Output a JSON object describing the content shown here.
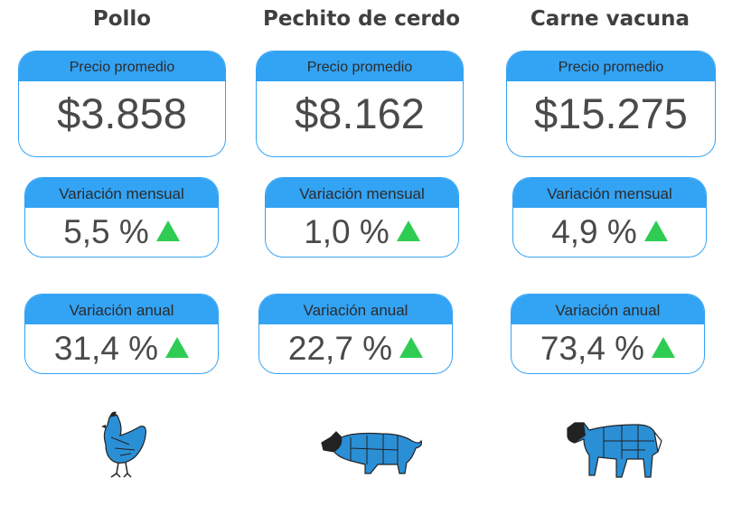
{
  "columns": [
    {
      "title": "Pollo",
      "price_label": "Precio promedio",
      "price": "$3.858",
      "monthly_label": "Variación mensual",
      "monthly": "5,5 %",
      "annual_label": "Variación anual",
      "annual": "31,4 %"
    },
    {
      "title": "Pechito de cerdo",
      "price_label": "Precio promedio",
      "price": "$8.162",
      "monthly_label": "Variación mensual",
      "monthly": "1,0 %",
      "annual_label": "Variación anual",
      "annual": "22,7 %"
    },
    {
      "title": "Carne vacuna",
      "price_label": "Precio promedio",
      "price": "$15.275",
      "monthly_label": "Variación mensual",
      "monthly": "4,9 %",
      "annual_label": "Variación anual",
      "annual": "73,4 %"
    }
  ],
  "icons": {
    "trend": "triangle-up-icon",
    "animals": [
      "chicken-icon",
      "pig-icon",
      "cow-icon"
    ]
  },
  "colors": {
    "accent": "#33a3f4",
    "up": "#2ecc52",
    "text": "#4a4a4a",
    "animal": "#2b8fd6"
  }
}
